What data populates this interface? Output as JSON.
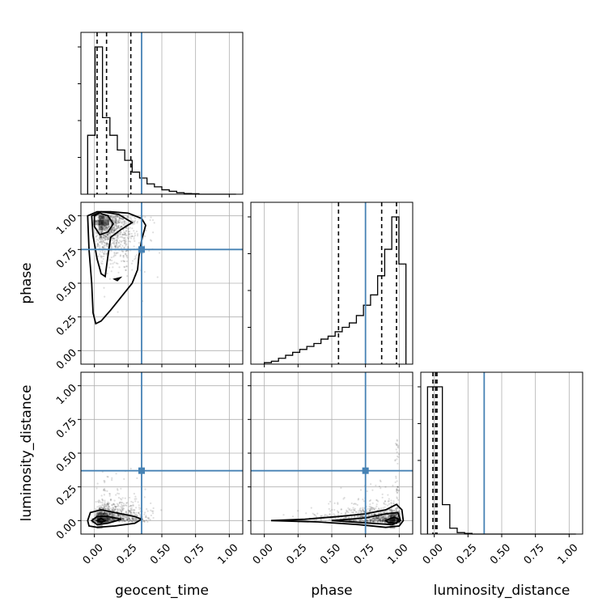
{
  "chart_data": {
    "type": "corner",
    "parameters": [
      "geocent_time",
      "phase",
      "luminosity_distance"
    ],
    "axis_ranges": {
      "geocent_time": [
        -0.1,
        1.1
      ],
      "phase": [
        -0.1,
        1.1
      ],
      "luminosity_distance": [
        -0.1,
        1.1
      ]
    },
    "ticks": [
      0.0,
      0.25,
      0.5,
      0.75,
      1.0
    ],
    "tick_labels": [
      "0.00",
      "0.25",
      "0.50",
      "0.75",
      "1.00"
    ],
    "grid": true,
    "colors": {
      "truth": "#4682b4",
      "histogram": "#000000",
      "contour": "#000000"
    },
    "truths": {
      "geocent_time": 0.35,
      "phase": 0.75,
      "luminosity_distance": 0.37
    },
    "quantiles": {
      "geocent_time": [
        0.02,
        0.09,
        0.27
      ],
      "phase": [
        0.55,
        0.87,
        0.98
      ],
      "luminosity_distance": [
        -0.01,
        0.01,
        0.02
      ]
    },
    "histograms": {
      "geocent_time": {
        "range": [
          -0.05,
          1.05
        ],
        "bins": 20,
        "counts": [
          0.4,
          1.0,
          0.52,
          0.4,
          0.3,
          0.23,
          0.15,
          0.11,
          0.07,
          0.05,
          0.03,
          0.02,
          0.01,
          0.005,
          0.003,
          0.0,
          0.0,
          0.0,
          0.0,
          0.0
        ]
      },
      "phase": {
        "range": [
          0.0,
          1.05
        ],
        "bins": 20,
        "counts": [
          0.01,
          0.02,
          0.04,
          0.06,
          0.08,
          0.1,
          0.12,
          0.14,
          0.17,
          0.19,
          0.22,
          0.25,
          0.28,
          0.33,
          0.4,
          0.47,
          0.6,
          0.78,
          1.0,
          0.68
        ]
      },
      "luminosity_distance": {
        "range": [
          -0.05,
          1.05
        ],
        "bins": 20,
        "counts": [
          1.0,
          1.0,
          0.2,
          0.04,
          0.01,
          0.005,
          0.0,
          0.0,
          0.0,
          0.0,
          0.0,
          0.0,
          0.0,
          0.0,
          0.0,
          0.0,
          0.0,
          0.0,
          0.0,
          0.0
        ]
      }
    },
    "panels_2d": [
      {
        "x": "geocent_time",
        "y": "phase",
        "density_peak": [
          0.05,
          0.95
        ],
        "contours": [
          [
            [
              -0.05,
              1.0
            ],
            [
              0.02,
              1.03
            ],
            [
              0.12,
              1.03
            ],
            [
              0.25,
              1.02
            ],
            [
              0.35,
              0.98
            ],
            [
              0.38,
              0.93
            ],
            [
              0.35,
              0.82
            ],
            [
              0.33,
              0.7
            ],
            [
              0.32,
              0.6
            ],
            [
              0.28,
              0.5
            ],
            [
              0.2,
              0.4
            ],
            [
              0.12,
              0.3
            ],
            [
              0.05,
              0.22
            ],
            [
              0.01,
              0.2
            ],
            [
              -0.01,
              0.28
            ],
            [
              -0.02,
              0.5
            ],
            [
              -0.04,
              0.75
            ],
            [
              -0.05,
              1.0
            ]
          ],
          [
            [
              -0.02,
              1.0
            ],
            [
              0.05,
              1.03
            ],
            [
              0.18,
              1.01
            ],
            [
              0.28,
              0.95
            ],
            [
              0.2,
              0.9
            ],
            [
              0.12,
              0.84
            ],
            [
              0.1,
              0.7
            ],
            [
              0.08,
              0.55
            ],
            [
              0.05,
              0.57
            ],
            [
              0.02,
              0.68
            ],
            [
              -0.01,
              0.85
            ],
            [
              -0.02,
              1.0
            ]
          ],
          [
            [
              0.0,
              1.0
            ],
            [
              0.04,
              1.02
            ],
            [
              0.1,
              1.0
            ],
            [
              0.14,
              0.94
            ],
            [
              0.1,
              0.88
            ],
            [
              0.04,
              0.86
            ],
            [
              0.0,
              0.92
            ],
            [
              0.0,
              1.0
            ]
          ],
          [
            [
              0.15,
              0.53
            ],
            [
              0.19,
              0.54
            ],
            [
              0.17,
              0.52
            ],
            [
              0.15,
              0.53
            ]
          ]
        ]
      },
      {
        "x": "geocent_time",
        "y": "luminosity_distance",
        "density_peak": [
          0.04,
          0.0
        ],
        "contours": [
          [
            [
              -0.05,
              0.0
            ],
            [
              -0.03,
              0.06
            ],
            [
              0.05,
              0.08
            ],
            [
              0.15,
              0.06
            ],
            [
              0.3,
              0.03
            ],
            [
              0.35,
              0.01
            ],
            [
              0.3,
              -0.02
            ],
            [
              0.15,
              -0.04
            ],
            [
              0.02,
              -0.05
            ],
            [
              -0.04,
              -0.04
            ],
            [
              -0.05,
              0.0
            ]
          ],
          [
            [
              -0.02,
              0.0
            ],
            [
              0.02,
              0.03
            ],
            [
              0.1,
              0.03
            ],
            [
              0.2,
              0.01
            ],
            [
              0.1,
              -0.02
            ],
            [
              0.02,
              -0.03
            ],
            [
              -0.02,
              0.0
            ]
          ],
          [
            [
              0.02,
              0.0
            ],
            [
              0.05,
              0.015
            ],
            [
              0.08,
              0.0
            ],
            [
              0.05,
              -0.015
            ],
            [
              0.02,
              0.0
            ]
          ]
        ]
      },
      {
        "x": "phase",
        "y": "luminosity_distance",
        "density_peak": [
          0.95,
          0.0
        ],
        "contours": [
          [
            [
              0.05,
              0.0
            ],
            [
              0.3,
              0.01
            ],
            [
              0.55,
              0.03
            ],
            [
              0.75,
              0.05
            ],
            [
              0.9,
              0.08
            ],
            [
              0.98,
              0.12
            ],
            [
              1.02,
              0.08
            ],
            [
              1.03,
              0.0
            ],
            [
              1.0,
              -0.04
            ],
            [
              0.9,
              -0.05
            ],
            [
              0.7,
              -0.03
            ],
            [
              0.4,
              -0.01
            ],
            [
              0.05,
              0.0
            ]
          ],
          [
            [
              0.5,
              0.0
            ],
            [
              0.75,
              0.02
            ],
            [
              0.9,
              0.05
            ],
            [
              0.99,
              0.06
            ],
            [
              1.01,
              0.0
            ],
            [
              0.95,
              -0.03
            ],
            [
              0.8,
              -0.02
            ],
            [
              0.5,
              0.0
            ]
          ],
          [
            [
              0.9,
              0.0
            ],
            [
              0.96,
              0.025
            ],
            [
              1.0,
              0.01
            ],
            [
              0.98,
              -0.02
            ],
            [
              0.92,
              -0.015
            ],
            [
              0.9,
              0.0
            ]
          ]
        ]
      }
    ]
  }
}
